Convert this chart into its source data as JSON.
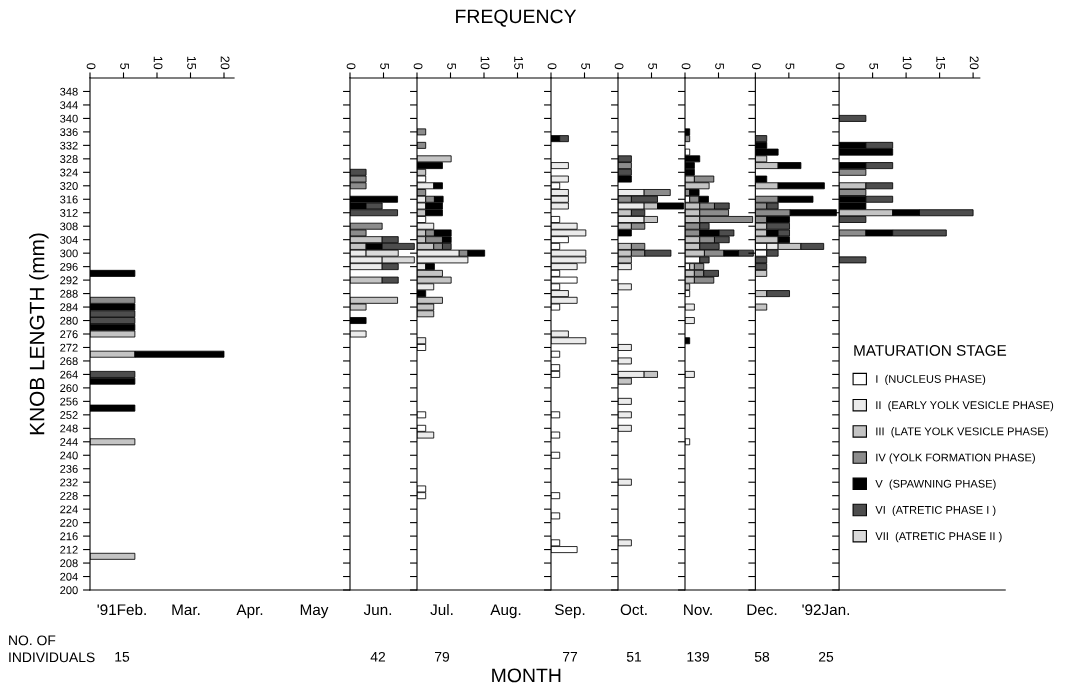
{
  "chart_data": [
    {
      "type": "bar",
      "orientation": "horizontal",
      "stacked": true,
      "ylabel": "KNOB LENGTH (mm)",
      "xlim": [
        0,
        21.5
      ],
      "xticks": [
        0,
        5,
        10,
        15,
        20
      ],
      "ylim": [
        200,
        352
      ],
      "yticks": [
        200,
        204,
        208,
        212,
        216,
        220,
        224,
        228,
        232,
        236,
        240,
        244,
        248,
        252,
        256,
        260,
        264,
        268,
        272,
        276,
        280,
        284,
        288,
        292,
        296,
        300,
        304,
        308,
        312,
        316,
        320,
        324,
        328,
        332,
        336,
        340,
        344,
        348
      ],
      "x": [
        294,
        286,
        284,
        282,
        280,
        278,
        276,
        270,
        264,
        262,
        254,
        244,
        210
      ],
      "series": [
        {
          "color": "#c4c4c4",
          "values": [
            null,
            null,
            null,
            null,
            null,
            null,
            6.7,
            6.7,
            null,
            null,
            null,
            6.7,
            6.7
          ]
        },
        {
          "color": "#8c8c8c",
          "values": [
            null,
            6.7,
            null,
            null,
            null,
            null,
            null,
            null,
            null,
            null,
            null,
            null,
            null
          ]
        },
        {
          "color": "#000000",
          "values": [
            6.7,
            null,
            6.7,
            null,
            null,
            6.7,
            null,
            13.3,
            null,
            6.7,
            6.7,
            null,
            null
          ]
        },
        {
          "color": "#4d4d4d",
          "values": [
            null,
            null,
            null,
            6.7,
            6.7,
            null,
            null,
            null,
            6.7,
            null,
            null,
            null,
            null
          ]
        }
      ]
    },
    {
      "type": "bar",
      "orientation": "horizontal",
      "stacked": true,
      "tick_labels": "x",
      "xlim": [
        0,
        10
      ],
      "xticks": [
        0,
        5
      ],
      "ylim": [
        200,
        352
      ],
      "yticks": [
        200,
        204,
        208,
        212,
        216,
        220,
        224,
        228,
        232,
        236,
        240,
        244,
        248,
        252,
        256,
        260,
        264,
        268,
        272,
        276,
        280,
        284,
        288,
        292,
        296,
        300,
        304,
        308,
        312,
        316,
        320,
        324,
        328,
        332,
        336,
        340,
        344,
        348
      ],
      "x": [
        324,
        322,
        320,
        316,
        314,
        312,
        308,
        306,
        304,
        302,
        300,
        298,
        296,
        292,
        286,
        284,
        280,
        276
      ],
      "series": [
        {
          "color": "#ebebeb",
          "values": [
            null,
            null,
            null,
            null,
            null,
            null,
            null,
            null,
            null,
            null,
            2.4,
            4.8,
            4.8,
            null,
            null,
            null,
            null,
            2.4
          ]
        },
        {
          "color": "#c4c4c4",
          "values": [
            null,
            null,
            null,
            null,
            null,
            null,
            null,
            null,
            4.8,
            2.4,
            null,
            null,
            null,
            4.8,
            7.1,
            2.4,
            null,
            null
          ]
        },
        {
          "color": "#8c8c8c",
          "values": [
            null,
            2.4,
            2.4,
            null,
            null,
            null,
            4.8,
            2.4,
            null,
            null,
            null,
            null,
            null,
            null,
            null,
            null,
            null,
            null
          ]
        },
        {
          "color": "#000000",
          "values": [
            null,
            null,
            null,
            7.1,
            2.4,
            null,
            null,
            null,
            null,
            2.4,
            null,
            null,
            null,
            null,
            null,
            null,
            2.4,
            null
          ]
        },
        {
          "color": "#4d4d4d",
          "values": [
            2.4,
            null,
            null,
            null,
            2.4,
            7.1,
            null,
            null,
            2.4,
            4.8,
            null,
            null,
            2.4,
            2.4,
            null,
            null,
            null,
            null
          ]
        },
        {
          "color": "#dadada",
          "values": [
            null,
            null,
            null,
            null,
            null,
            null,
            null,
            null,
            null,
            null,
            4.8,
            4.8,
            null,
            null,
            null,
            null,
            null,
            null
          ]
        }
      ]
    },
    {
      "type": "bar",
      "orientation": "horizontal",
      "stacked": true,
      "xlabel": "FREQUENCY",
      "tick_labels": "x",
      "xlim": [
        0,
        20
      ],
      "xticks": [
        0,
        5,
        10,
        15
      ],
      "ylim": [
        200,
        352
      ],
      "yticks": [
        200,
        204,
        208,
        212,
        216,
        220,
        224,
        228,
        232,
        236,
        240,
        244,
        248,
        252,
        256,
        260,
        264,
        268,
        272,
        276,
        280,
        284,
        288,
        292,
        296,
        300,
        304,
        308,
        312,
        316,
        320,
        324,
        328,
        332,
        336,
        340,
        344,
        348
      ],
      "x": [
        336,
        332,
        328,
        326,
        324,
        322,
        320,
        318,
        316,
        314,
        312,
        310,
        308,
        306,
        304,
        302,
        300,
        298,
        296,
        294,
        292,
        290,
        288,
        286,
        284,
        282,
        274,
        272,
        252,
        248,
        246,
        230,
        228
      ],
      "series": [
        {
          "color": "#ffffff",
          "values": [
            null,
            null,
            null,
            null,
            null,
            1.3,
            null,
            null,
            null,
            null,
            null,
            1.3,
            null,
            null,
            null,
            null,
            null,
            null,
            null,
            null,
            null,
            null,
            null,
            null,
            null,
            null,
            null,
            1.3,
            1.3,
            1.3,
            null,
            1.3,
            1.3
          ]
        },
        {
          "color": "#ebebeb",
          "values": [
            null,
            null,
            null,
            null,
            null,
            null,
            2.5,
            null,
            1.3,
            1.3,
            null,
            null,
            2.5,
            null,
            null,
            null,
            6.3,
            7.6,
            1.3,
            null,
            null,
            2.5,
            null,
            null,
            null,
            null,
            1.3,
            null,
            null,
            null,
            2.5,
            null,
            null
          ]
        },
        {
          "color": "#c4c4c4",
          "values": [
            null,
            null,
            5.1,
            null,
            1.3,
            null,
            null,
            null,
            null,
            null,
            1.3,
            null,
            null,
            1.3,
            1.3,
            2.5,
            null,
            null,
            null,
            3.8,
            5.1,
            null,
            null,
            3.8,
            2.5,
            2.5,
            null,
            null,
            null,
            null,
            null,
            null,
            null
          ]
        },
        {
          "color": "#8c8c8c",
          "values": [
            1.3,
            1.3,
            null,
            null,
            null,
            null,
            null,
            1.3,
            1.3,
            null,
            null,
            null,
            null,
            1.3,
            2.5,
            1.3,
            1.3,
            null,
            null,
            null,
            null,
            null,
            null,
            null,
            null,
            null,
            null,
            null,
            null,
            null,
            null,
            null,
            null
          ]
        },
        {
          "color": "#000000",
          "values": [
            null,
            null,
            null,
            3.8,
            null,
            null,
            1.3,
            null,
            1.3,
            2.5,
            2.5,
            null,
            null,
            2.5,
            1.3,
            null,
            2.5,
            null,
            1.3,
            null,
            null,
            null,
            1.3,
            null,
            null,
            null,
            null,
            null,
            null,
            null,
            null,
            null,
            null
          ]
        },
        {
          "color": "#4d4d4d",
          "values": [
            null,
            null,
            null,
            null,
            null,
            null,
            null,
            null,
            null,
            null,
            null,
            null,
            null,
            null,
            null,
            1.3,
            null,
            null,
            null,
            null,
            null,
            null,
            null,
            null,
            null,
            null,
            null,
            null,
            null,
            null,
            null,
            null,
            null
          ]
        }
      ]
    },
    {
      "type": "bar",
      "orientation": "horizontal",
      "stacked": true,
      "tick_labels": "x",
      "xlim": [
        0,
        10
      ],
      "xticks": [
        0,
        5
      ],
      "ylim": [
        200,
        352
      ],
      "yticks": [
        200,
        204,
        208,
        212,
        216,
        220,
        224,
        228,
        232,
        236,
        240,
        244,
        248,
        252,
        256,
        260,
        264,
        268,
        272,
        276,
        280,
        284,
        288,
        292,
        296,
        300,
        304,
        308,
        312,
        316,
        320,
        324,
        328,
        332,
        336,
        340,
        344,
        348
      ],
      "x": [
        334,
        326,
        322,
        320,
        318,
        316,
        314,
        310,
        308,
        306,
        304,
        302,
        300,
        298,
        296,
        294,
        292,
        290,
        288,
        286,
        284,
        276,
        274,
        270,
        266,
        264,
        252,
        246,
        240,
        228,
        222,
        214,
        212
      ],
      "series": [
        {
          "color": "#ffffff",
          "values": [
            null,
            null,
            null,
            1.3,
            null,
            null,
            null,
            1.3,
            null,
            null,
            2.6,
            1.3,
            null,
            null,
            null,
            1.3,
            3.9,
            1.3,
            null,
            null,
            1.3,
            null,
            null,
            1.3,
            1.3,
            1.3,
            1.3,
            1.3,
            1.3,
            1.3,
            1.3,
            1.3,
            3.9
          ]
        },
        {
          "color": "#ebebeb",
          "values": [
            null,
            2.6,
            2.6,
            null,
            2.6,
            2.6,
            2.6,
            null,
            3.9,
            5.2,
            null,
            null,
            5.2,
            5.2,
            3.9,
            null,
            null,
            null,
            2.6,
            3.9,
            null,
            2.6,
            5.2,
            null,
            null,
            null,
            null,
            null,
            null,
            null,
            null,
            null,
            null
          ]
        },
        {
          "color": "#000000",
          "values": [
            1.3,
            null,
            null,
            null,
            null,
            null,
            null,
            null,
            null,
            null,
            null,
            null,
            null,
            null,
            null,
            null,
            null,
            null,
            null,
            null,
            null,
            null,
            null,
            null,
            null,
            null,
            null,
            null,
            null,
            null,
            null,
            null,
            null
          ]
        },
        {
          "color": "#4d4d4d",
          "values": [
            1.3,
            null,
            null,
            null,
            null,
            null,
            null,
            null,
            null,
            null,
            null,
            null,
            null,
            null,
            null,
            null,
            null,
            null,
            null,
            null,
            null,
            null,
            null,
            null,
            null,
            null,
            null,
            null,
            null,
            null,
            null,
            null,
            null
          ]
        }
      ]
    },
    {
      "type": "bar",
      "orientation": "horizontal",
      "stacked": true,
      "tick_labels": "x",
      "xlim": [
        0,
        10
      ],
      "xticks": [
        0,
        5
      ],
      "ylim": [
        200,
        352
      ],
      "yticks": [
        200,
        204,
        208,
        212,
        216,
        220,
        224,
        228,
        232,
        236,
        240,
        244,
        248,
        252,
        256,
        260,
        264,
        268,
        272,
        276,
        280,
        284,
        288,
        292,
        296,
        300,
        304,
        308,
        312,
        316,
        320,
        324,
        328,
        332,
        336,
        340,
        344,
        348
      ],
      "x": [
        328,
        326,
        324,
        322,
        318,
        316,
        314,
        312,
        310,
        308,
        306,
        302,
        300,
        298,
        296,
        290,
        272,
        268,
        264,
        262,
        256,
        252,
        248,
        232,
        214
      ],
      "series": [
        {
          "color": "#ebebeb",
          "values": [
            null,
            null,
            null,
            null,
            3.9,
            null,
            3.9,
            null,
            3.9,
            null,
            null,
            null,
            null,
            null,
            2.0,
            2.0,
            2.0,
            2.0,
            3.9,
            null,
            2.0,
            2.0,
            2.0,
            2.0,
            2.0
          ]
        },
        {
          "color": "#c4c4c4",
          "values": [
            null,
            null,
            null,
            null,
            null,
            null,
            2.0,
            2.0,
            2.0,
            2.0,
            null,
            2.0,
            2.0,
            2.0,
            null,
            null,
            null,
            null,
            2.0,
            2.0,
            null,
            null,
            null,
            null,
            null
          ]
        },
        {
          "color": "#8c8c8c",
          "values": [
            null,
            2.0,
            null,
            null,
            3.9,
            2.0,
            null,
            null,
            null,
            2.0,
            null,
            2.0,
            2.0,
            null,
            null,
            null,
            null,
            null,
            null,
            null,
            null,
            null,
            null,
            null,
            null
          ]
        },
        {
          "color": "#000000",
          "values": [
            null,
            null,
            null,
            2.0,
            null,
            null,
            3.9,
            null,
            null,
            null,
            2.0,
            null,
            null,
            null,
            null,
            null,
            null,
            null,
            null,
            null,
            null,
            null,
            null,
            null,
            null
          ]
        },
        {
          "color": "#4d4d4d",
          "values": [
            2.0,
            null,
            2.0,
            null,
            null,
            3.9,
            null,
            2.0,
            null,
            null,
            null,
            null,
            3.9,
            null,
            null,
            null,
            null,
            null,
            null,
            null,
            null,
            null,
            null,
            null,
            null
          ]
        }
      ]
    },
    {
      "type": "bar",
      "orientation": "horizontal",
      "stacked": true,
      "tick_labels": "x",
      "xlim": [
        0,
        10.5
      ],
      "xticks": [
        0,
        5
      ],
      "ylim": [
        200,
        352
      ],
      "yticks": [
        200,
        204,
        208,
        212,
        216,
        220,
        224,
        228,
        232,
        236,
        240,
        244,
        248,
        252,
        256,
        260,
        264,
        268,
        272,
        276,
        280,
        284,
        288,
        292,
        296,
        300,
        304,
        308,
        312,
        316,
        320,
        324,
        328,
        332,
        336,
        340,
        344,
        348
      ],
      "x": [
        336,
        334,
        330,
        328,
        326,
        324,
        322,
        320,
        318,
        316,
        314,
        312,
        310,
        308,
        306,
        304,
        302,
        300,
        298,
        296,
        294,
        292,
        290,
        288,
        284,
        280,
        274,
        264,
        244
      ],
      "series": [
        {
          "color": "#ffffff",
          "values": [
            null,
            null,
            0.7,
            null,
            null,
            null,
            null,
            null,
            null,
            0.7,
            null,
            null,
            null,
            null,
            null,
            null,
            null,
            null,
            2.2,
            0.7,
            null,
            null,
            null,
            0.7,
            null,
            null,
            null,
            null,
            0.7
          ]
        },
        {
          "color": "#ebebeb",
          "values": [
            null,
            null,
            null,
            null,
            null,
            null,
            null,
            null,
            null,
            null,
            null,
            null,
            null,
            null,
            null,
            null,
            null,
            null,
            null,
            null,
            null,
            null,
            null,
            null,
            1.4,
            1.4,
            null,
            1.4,
            null
          ]
        },
        {
          "color": "#c4c4c4",
          "values": [
            null,
            null,
            null,
            null,
            null,
            null,
            1.4,
            3.6,
            null,
            null,
            2.2,
            2.2,
            2.2,
            null,
            null,
            2.2,
            2.2,
            2.9,
            null,
            0.7,
            1.4,
            1.4,
            0.7,
            null,
            null,
            null,
            null,
            null,
            null
          ]
        },
        {
          "color": "#8c8c8c",
          "values": [
            null,
            0.7,
            null,
            null,
            null,
            null,
            2.9,
            null,
            0.7,
            1.4,
            2.2,
            4.3,
            7.9,
            2.2,
            2.2,
            2.2,
            null,
            2.9,
            null,
            1.4,
            1.4,
            2.9,
            null,
            null,
            null,
            null,
            null,
            null,
            null
          ]
        },
        {
          "color": "#000000",
          "values": [
            0.7,
            null,
            null,
            2.2,
            1.4,
            1.4,
            null,
            null,
            1.4,
            1.4,
            null,
            null,
            null,
            null,
            2.9,
            null,
            null,
            2.2,
            null,
            null,
            null,
            null,
            null,
            null,
            null,
            null,
            0.7,
            null,
            null
          ]
        },
        {
          "color": "#4d4d4d",
          "values": [
            null,
            null,
            null,
            null,
            null,
            null,
            null,
            null,
            null,
            null,
            2.2,
            null,
            null,
            1.4,
            2.2,
            2.2,
            2.9,
            2.2,
            1.4,
            null,
            2.2,
            null,
            null,
            null,
            null,
            null,
            null,
            null,
            null
          ]
        }
      ]
    },
    {
      "type": "bar",
      "orientation": "horizontal",
      "stacked": true,
      "tick_labels": "x",
      "xlim": [
        0,
        12.5
      ],
      "xticks": [
        0,
        5
      ],
      "ylim": [
        200,
        352
      ],
      "yticks": [
        200,
        204,
        208,
        212,
        216,
        220,
        224,
        228,
        232,
        236,
        240,
        244,
        248,
        252,
        256,
        260,
        264,
        268,
        272,
        276,
        280,
        284,
        288,
        292,
        296,
        300,
        304,
        308,
        312,
        316,
        320,
        324,
        328,
        332,
        336,
        340,
        344,
        348
      ],
      "x": [
        334,
        332,
        330,
        328,
        326,
        322,
        320,
        316,
        314,
        312,
        310,
        308,
        306,
        304,
        302,
        300,
        298,
        296,
        294,
        288,
        284
      ],
      "series": [
        {
          "color": "#ffffff",
          "values": [
            null,
            null,
            null,
            null,
            null,
            null,
            null,
            null,
            null,
            null,
            null,
            null,
            null,
            null,
            1.7,
            1.7,
            null,
            null,
            null,
            null,
            null
          ]
        },
        {
          "color": "#ebebeb",
          "values": [
            null,
            null,
            null,
            null,
            null,
            null,
            null,
            null,
            null,
            null,
            null,
            null,
            null,
            null,
            1.7,
            null,
            null,
            null,
            null,
            null,
            null
          ]
        },
        {
          "color": "#c4c4c4",
          "values": [
            null,
            null,
            null,
            1.7,
            3.4,
            null,
            3.4,
            null,
            null,
            null,
            null,
            1.7,
            1.7,
            3.4,
            3.4,
            null,
            null,
            null,
            1.7,
            1.7,
            1.7
          ]
        },
        {
          "color": "#8c8c8c",
          "values": [
            null,
            null,
            null,
            null,
            null,
            null,
            null,
            3.4,
            1.7,
            5.2,
            1.7,
            null,
            null,
            null,
            null,
            null,
            null,
            null,
            null,
            null,
            null
          ]
        },
        {
          "color": "#000000",
          "values": [
            null,
            1.7,
            3.4,
            null,
            3.4,
            1.7,
            6.9,
            5.2,
            null,
            6.9,
            3.4,
            null,
            1.7,
            1.7,
            null,
            null,
            null,
            null,
            null,
            null,
            null
          ]
        },
        {
          "color": "#4d4d4d",
          "values": [
            1.7,
            null,
            null,
            null,
            null,
            null,
            null,
            null,
            1.7,
            null,
            null,
            3.4,
            1.7,
            null,
            3.4,
            1.7,
            1.7,
            1.7,
            null,
            3.4,
            null
          ]
        }
      ]
    },
    {
      "type": "bar",
      "orientation": "horizontal",
      "stacked": true,
      "tick_labels": "x",
      "xlim": [
        0,
        21
      ],
      "xticks": [
        0,
        5,
        10,
        15,
        20
      ],
      "ylim": [
        200,
        352
      ],
      "yticks": [
        200,
        204,
        208,
        212,
        216,
        220,
        224,
        228,
        232,
        236,
        240,
        244,
        248,
        252,
        256,
        260,
        264,
        268,
        272,
        276,
        280,
        284,
        288,
        292,
        296,
        300,
        304,
        308,
        312,
        316,
        320,
        324,
        328,
        332,
        336,
        340,
        344,
        348
      ],
      "legend": "right",
      "legend_title": "MATURATION STAGE",
      "x": [
        340,
        332,
        330,
        326,
        324,
        320,
        318,
        316,
        314,
        312,
        310,
        306,
        298
      ],
      "series": [
        {
          "name": "I  (NUCLEUS PHASE)",
          "color": "#ffffff",
          "values": [
            null,
            null,
            null,
            null,
            null,
            null,
            null,
            null,
            null,
            null,
            null,
            null,
            null
          ]
        },
        {
          "name": "II  (EARLY YOLK VESICLE PHASE)",
          "color": "#ebebeb",
          "values": [
            null,
            null,
            null,
            null,
            null,
            null,
            null,
            null,
            null,
            null,
            null,
            null,
            null
          ]
        },
        {
          "name": "III  (LATE YOLK VESICLE PHASE)",
          "color": "#c4c4c4",
          "values": [
            null,
            null,
            null,
            null,
            null,
            4,
            null,
            null,
            null,
            8,
            null,
            null,
            null
          ]
        },
        {
          "name": "IV (YOLK FORMATION PHASE)",
          "color": "#8c8c8c",
          "values": [
            null,
            null,
            null,
            null,
            4,
            null,
            4,
            null,
            null,
            null,
            null,
            4,
            null
          ]
        },
        {
          "name": "V  (SPAWNING PHASE)",
          "color": "#000000",
          "values": [
            null,
            4,
            8,
            4,
            null,
            null,
            null,
            4,
            4,
            4,
            null,
            4,
            null
          ]
        },
        {
          "name": "VI  (ATRETIC PHASE I )",
          "color": "#4d4d4d",
          "values": [
            4,
            4,
            null,
            4,
            null,
            4,
            null,
            4,
            null,
            8,
            4,
            8,
            4
          ]
        },
        {
          "name": "VII  (ATRETIC PHASE II )",
          "color": "#dadada",
          "values": [
            null,
            null,
            null,
            null,
            null,
            null,
            null,
            null,
            null,
            null,
            null,
            null,
            null
          ]
        }
      ]
    },
    {
      "type": "other",
      "xlabel": "MONTH",
      "annotations": [
        "NO. OF\nINDIVIDUALS"
      ],
      "data_labels": true,
      "categories": [
        "'91Feb.",
        "Mar.",
        "Apr.",
        "May",
        "Jun.",
        "Jul.",
        "Aug.",
        "Sep.",
        "Oct.",
        "Nov.",
        "Dec.",
        "'92Jan."
      ],
      "values": [
        15,
        null,
        null,
        null,
        42,
        79,
        null,
        77,
        51,
        139,
        58,
        25
      ]
    }
  ]
}
